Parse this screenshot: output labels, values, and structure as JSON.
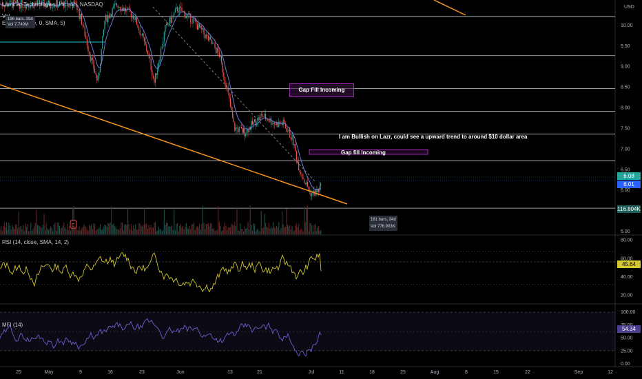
{
  "header": {
    "symbol_title": "Luminar Technologies, Inc., 1h, NASDAQ",
    "vol_label": "Vol",
    "ema_label": "EMA (9, close, 0, SMA, 5)",
    "currency": "USD"
  },
  "top_badge": {
    "line1": "196 bars, 39d",
    "line2": "Vol 7.740M"
  },
  "bottom_badge": {
    "line1": "161 bars, 34d",
    "line2": "Vol 776.903K"
  },
  "annotations": {
    "gap_fill_1": "Gap Fill Incoming",
    "gap_fill_2": "Gap fill Incoming",
    "bullish_note": "I am Bullish on Lazr,  could see a upward trend to around $10 dollar area"
  },
  "price_tags": {
    "last": "6.08",
    "ema": "6.01",
    "volume": "116.804K",
    "rsi": "45.64",
    "mfi": "54.34"
  },
  "colors": {
    "background": "#000000",
    "candle_up": "#26a69a",
    "candle_down": "#ef5350",
    "ema": "#6b7bd6",
    "trendline": "#f7931a",
    "rsi_line": "#d4c72f",
    "mfi_line": "#6f5fd0",
    "annotation_border": "#9c27b0",
    "tag_last": "#26a69a",
    "tag_ema": "#2962ff"
  },
  "chart_data": [
    {
      "type": "candlestick",
      "title": "Luminar Technologies, Inc., 1h, NASDAQ",
      "y_axis": {
        "ticks": [
          "10.00",
          "9.50",
          "9.00",
          "8.50",
          "8.00",
          "7.50",
          "7.00",
          "6.50",
          "6.00",
          "5.50",
          "5.00"
        ],
        "ylim": [
          5.0,
          10.5
        ],
        "unit": "USD"
      },
      "x_axis": {
        "ticks": [
          "25",
          "May",
          "9",
          "16",
          "23",
          "Jun",
          "13",
          "21",
          "Jul",
          "11",
          "18",
          "25",
          "Aug",
          "8",
          "15",
          "22",
          "Sep",
          "12"
        ]
      },
      "approx_close_path": [
        {
          "x": "25",
          "y": 10.4
        },
        {
          "x": "May",
          "y": 10.1
        },
        {
          "x": "9",
          "y": 9.0
        },
        {
          "x": "16",
          "y": 10.2
        },
        {
          "x": "23",
          "y": 9.0
        },
        {
          "x": "Jun",
          "y": 10.3
        },
        {
          "x": "13",
          "y": 7.5
        },
        {
          "x": "21",
          "y": 7.6
        },
        {
          "x": "Jul",
          "y": 5.75
        }
      ],
      "horizontal_levels": [
        10.2,
        9.25,
        8.45,
        7.9,
        7.35,
        6.7,
        5.55
      ],
      "trendlines": [
        "descending",
        "upper-right-fragment"
      ]
    },
    {
      "type": "bar",
      "title": "Volume",
      "last_value": "116.804K"
    },
    {
      "type": "line",
      "title": "RSI (14, close, SMA, 14, 2)",
      "y_axis": {
        "ticks": [
          "80.00",
          "60.00",
          "40.00",
          "20.00"
        ],
        "ylim": [
          10,
          85
        ]
      },
      "reference_levels": [
        70,
        30
      ],
      "last_value": 45.64
    },
    {
      "type": "line",
      "title": "MFI (14)",
      "y_axis": {
        "ticks": [
          "100.00",
          "75.00",
          "50.00",
          "25.00",
          "0.00"
        ],
        "ylim": [
          0,
          100
        ]
      },
      "reference_levels": [
        80,
        50,
        20
      ],
      "last_value": 54.34
    }
  ]
}
